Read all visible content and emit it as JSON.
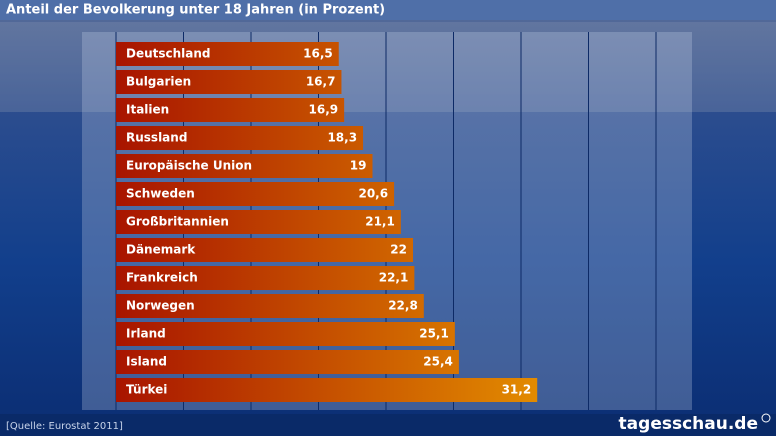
{
  "chart_data": {
    "type": "hbar",
    "title": "Anteil der Bevolkerung unter 18 Jahren (in Prozent)",
    "categories": [
      "Deutschland",
      "Bulgarien",
      "Italien",
      "Russland",
      "Europäische Union",
      "Schweden",
      "Großbritannien",
      "Dänemark",
      "Frankreich",
      "Norwegen",
      "Irland",
      "Island",
      "Türkei"
    ],
    "values": [
      16.5,
      16.7,
      16.9,
      18.3,
      19,
      20.6,
      21.1,
      22,
      22.1,
      22.8,
      25.1,
      25.4,
      31.2
    ],
    "value_labels": [
      "16,5",
      "16,7",
      "16,9",
      "18,3",
      "19",
      "20,6",
      "21,1",
      "22",
      "22,1",
      "22,8",
      "25,1",
      "25,4",
      "31,2"
    ],
    "colors": [
      "#a81400",
      "#e48e00"
    ],
    "xlim": [
      0,
      40
    ],
    "xticks": [
      0,
      5,
      10,
      15,
      20,
      25,
      30,
      35,
      40
    ],
    "grid": true,
    "source": "[Quelle: Eurostat 2011]",
    "brand": "tagesschau.de"
  }
}
